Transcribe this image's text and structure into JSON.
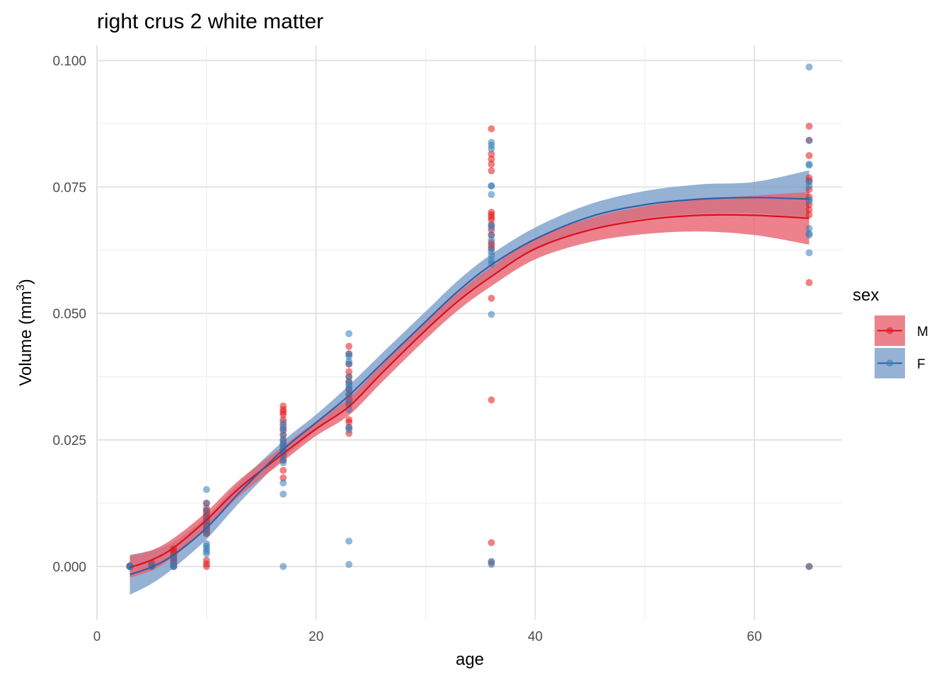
{
  "chart_data": {
    "type": "scatter",
    "title": "right crus 2 white matter",
    "xlabel": "age",
    "ylabel": "Volume (mm",
    "ylabel_sup": "3",
    "ylabel_close": ")",
    "xlim": [
      0,
      68
    ],
    "ylim": [
      -0.0105,
      0.103
    ],
    "x_ticks": [
      0,
      20,
      40,
      60
    ],
    "x_tick_labels": [
      "0",
      "20",
      "40",
      "60"
    ],
    "y_ticks": [
      0,
      0.025,
      0.05,
      0.075,
      0.1
    ],
    "y_tick_labels": [
      "0.000",
      "0.025",
      "0.050",
      "0.075",
      "0.100"
    ],
    "grid": true,
    "legend": {
      "title": "sex",
      "position": "right",
      "entries": [
        "M",
        "F"
      ]
    },
    "colors": {
      "M": "#e41a1c",
      "F": "#377eb8",
      "M_line": "#dc0f1e",
      "F_line": "#2f5fa8",
      "M_band": "#e8636f",
      "F_band": "#7a9fcb"
    },
    "series": [
      {
        "name": "M",
        "points": [
          [
            3,
            0
          ],
          [
            3,
            0
          ],
          [
            3,
            0
          ],
          [
            3,
            0
          ],
          [
            3,
            0.0001
          ],
          [
            5,
            0.0002
          ],
          [
            5,
            0.0007
          ],
          [
            5,
            0
          ],
          [
            7,
            0.0035
          ],
          [
            7,
            0.003
          ],
          [
            7,
            0.002
          ],
          [
            7,
            0.0025
          ],
          [
            7,
            0.001
          ],
          [
            7,
            0.0005
          ],
          [
            7,
            0.0015
          ],
          [
            7,
            0
          ],
          [
            10,
            0.0125
          ],
          [
            10,
            0.0115
          ],
          [
            10,
            0.011
          ],
          [
            10,
            0.0105
          ],
          [
            10,
            0.01
          ],
          [
            10,
            0.0095
          ],
          [
            10,
            0.009
          ],
          [
            10,
            0.0085
          ],
          [
            10,
            0.008
          ],
          [
            10,
            0.0075
          ],
          [
            10,
            0.007
          ],
          [
            10,
            0.0065
          ],
          [
            10,
            0.0012
          ],
          [
            10,
            0.0005
          ],
          [
            10,
            0
          ],
          [
            17,
            0.0317
          ],
          [
            17,
            0.031
          ],
          [
            17,
            0.0305
          ],
          [
            17,
            0.03
          ],
          [
            17,
            0.029
          ],
          [
            17,
            0.028
          ],
          [
            17,
            0.027
          ],
          [
            17,
            0.026
          ],
          [
            17,
            0.025
          ],
          [
            17,
            0.024
          ],
          [
            17,
            0.023
          ],
          [
            17,
            0.022
          ],
          [
            17,
            0.021
          ],
          [
            17,
            0.019
          ],
          [
            17,
            0.0175
          ],
          [
            23,
            0.0435
          ],
          [
            23,
            0.042
          ],
          [
            23,
            0.04
          ],
          [
            23,
            0.0385
          ],
          [
            23,
            0.0375
          ],
          [
            23,
            0.0365
          ],
          [
            23,
            0.035
          ],
          [
            23,
            0.034
          ],
          [
            23,
            0.033
          ],
          [
            23,
            0.032
          ],
          [
            23,
            0.029
          ],
          [
            23,
            0.0285
          ],
          [
            23,
            0.0275
          ],
          [
            23,
            0.0263
          ],
          [
            36,
            0.0865
          ],
          [
            36,
            0.0815
          ],
          [
            36,
            0.0805
          ],
          [
            36,
            0.0795
          ],
          [
            36,
            0.0782
          ],
          [
            36,
            0.07
          ],
          [
            36,
            0.0695
          ],
          [
            36,
            0.069
          ],
          [
            36,
            0.0685
          ],
          [
            36,
            0.0675
          ],
          [
            36,
            0.0665
          ],
          [
            36,
            0.0655
          ],
          [
            36,
            0.064
          ],
          [
            36,
            0.0635
          ],
          [
            36,
            0.0628
          ],
          [
            36,
            0.053
          ],
          [
            36,
            0.0329
          ],
          [
            36,
            0.0047
          ],
          [
            36,
            0.0008
          ],
          [
            65,
            0.087
          ],
          [
            65,
            0.0842
          ],
          [
            65,
            0.0812
          ],
          [
            65,
            0.0768
          ],
          [
            65,
            0.0762
          ],
          [
            65,
            0.0745
          ],
          [
            65,
            0.073
          ],
          [
            65,
            0.0715
          ],
          [
            65,
            0.0705
          ],
          [
            65,
            0.0695
          ],
          [
            65,
            0.0561
          ],
          [
            65,
            0
          ]
        ],
        "fit": [
          [
            3,
            -0.0002
          ],
          [
            5,
            0.0013
          ],
          [
            7,
            0.0037
          ],
          [
            10,
            0.0092
          ],
          [
            13,
            0.0155
          ],
          [
            17,
            0.0223
          ],
          [
            20,
            0.0272
          ],
          [
            23,
            0.0316
          ],
          [
            26,
            0.0382
          ],
          [
            30,
            0.0467
          ],
          [
            33,
            0.0525
          ],
          [
            36,
            0.0573
          ],
          [
            40,
            0.0628
          ],
          [
            45,
            0.0665
          ],
          [
            50,
            0.0685
          ],
          [
            55,
            0.0694
          ],
          [
            60,
            0.0694
          ],
          [
            65,
            0.0688
          ]
        ],
        "band": [
          [
            3,
            -0.0022,
            0.0021
          ],
          [
            5,
            -0.0008,
            0.0032
          ],
          [
            7,
            0.0019,
            0.0056
          ],
          [
            10,
            0.0075,
            0.0108
          ],
          [
            13,
            0.0139,
            0.0171
          ],
          [
            17,
            0.0208,
            0.0238
          ],
          [
            20,
            0.0258,
            0.0287
          ],
          [
            23,
            0.0299,
            0.0333
          ],
          [
            26,
            0.0364,
            0.0399
          ],
          [
            30,
            0.0449,
            0.0484
          ],
          [
            33,
            0.0507,
            0.0542
          ],
          [
            36,
            0.0554,
            0.0592
          ],
          [
            40,
            0.0607,
            0.0648
          ],
          [
            45,
            0.0641,
            0.0688
          ],
          [
            50,
            0.0657,
            0.0712
          ],
          [
            55,
            0.0662,
            0.0725
          ],
          [
            60,
            0.0655,
            0.0733
          ],
          [
            65,
            0.0636,
            0.074
          ]
        ]
      },
      {
        "name": "F",
        "points": [
          [
            3,
            0
          ],
          [
            3,
            0
          ],
          [
            3,
            0
          ],
          [
            3,
            0.0001
          ],
          [
            5,
            0
          ],
          [
            5,
            0.0003
          ],
          [
            7,
            0
          ],
          [
            7,
            0
          ],
          [
            7,
            0.0005
          ],
          [
            7,
            0.0012
          ],
          [
            7,
            0.002
          ],
          [
            10,
            0.0152
          ],
          [
            10,
            0.0125
          ],
          [
            10,
            0.011
          ],
          [
            10,
            0.0095
          ],
          [
            10,
            0.0085
          ],
          [
            10,
            0.0075
          ],
          [
            10,
            0.0065
          ],
          [
            10,
            0.0045
          ],
          [
            10,
            0.004
          ],
          [
            10,
            0.0035
          ],
          [
            10,
            0.003
          ],
          [
            10,
            0.0025
          ],
          [
            17,
            0.0285
          ],
          [
            17,
            0.0275
          ],
          [
            17,
            0.027
          ],
          [
            17,
            0.026
          ],
          [
            17,
            0.025
          ],
          [
            17,
            0.0245
          ],
          [
            17,
            0.024
          ],
          [
            17,
            0.0235
          ],
          [
            17,
            0.023
          ],
          [
            17,
            0.0225
          ],
          [
            17,
            0.022
          ],
          [
            17,
            0.021
          ],
          [
            17,
            0.0205
          ],
          [
            17,
            0.0165
          ],
          [
            17,
            0.0143
          ],
          [
            17,
            0
          ],
          [
            23,
            0.046
          ],
          [
            23,
            0.042
          ],
          [
            23,
            0.0415
          ],
          [
            23,
            0.0405
          ],
          [
            23,
            0.04
          ],
          [
            23,
            0.0375
          ],
          [
            23,
            0.0365
          ],
          [
            23,
            0.036
          ],
          [
            23,
            0.0355
          ],
          [
            23,
            0.035
          ],
          [
            23,
            0.034
          ],
          [
            23,
            0.0325
          ],
          [
            23,
            0.031
          ],
          [
            23,
            0.0275
          ],
          [
            23,
            0.027
          ],
          [
            23,
            0.005
          ],
          [
            23,
            0.0004
          ],
          [
            36,
            0.0838
          ],
          [
            36,
            0.0832
          ],
          [
            36,
            0.0825
          ],
          [
            36,
            0.0752
          ],
          [
            36,
            0.0752
          ],
          [
            36,
            0.0735
          ],
          [
            36,
            0.0675
          ],
          [
            36,
            0.067
          ],
          [
            36,
            0.0655
          ],
          [
            36,
            0.0645
          ],
          [
            36,
            0.063
          ],
          [
            36,
            0.0622
          ],
          [
            36,
            0.0615
          ],
          [
            36,
            0.0605
          ],
          [
            36,
            0.0598
          ],
          [
            36,
            0.0498
          ],
          [
            36,
            0.001
          ],
          [
            36,
            0.0004
          ],
          [
            65,
            0.0987
          ],
          [
            65,
            0.0842
          ],
          [
            65,
            0.0795
          ],
          [
            65,
            0.0793
          ],
          [
            65,
            0.076
          ],
          [
            65,
            0.0752
          ],
          [
            65,
            0.0725
          ],
          [
            65,
            0.0722
          ],
          [
            65,
            0.0668
          ],
          [
            65,
            0.0658
          ],
          [
            65,
            0.0655
          ],
          [
            65,
            0.062
          ],
          [
            65,
            0
          ]
        ],
        "fit": [
          [
            3,
            -0.0016
          ],
          [
            5,
            -0.0001
          ],
          [
            7,
            0.0023
          ],
          [
            10,
            0.0076
          ],
          [
            13,
            0.0146
          ],
          [
            17,
            0.0231
          ],
          [
            20,
            0.0284
          ],
          [
            23,
            0.0338
          ],
          [
            26,
            0.0401
          ],
          [
            30,
            0.0484
          ],
          [
            33,
            0.0545
          ],
          [
            36,
            0.0596
          ],
          [
            40,
            0.0647
          ],
          [
            45,
            0.0691
          ],
          [
            50,
            0.0715
          ],
          [
            55,
            0.0726
          ],
          [
            60,
            0.0729
          ],
          [
            65,
            0.0726
          ]
        ],
        "band": [
          [
            3,
            -0.0056,
            0.0023
          ],
          [
            5,
            -0.0034,
            0.0032
          ],
          [
            7,
            -0.0003,
            0.0049
          ],
          [
            10,
            0.0054,
            0.0099
          ],
          [
            13,
            0.0126,
            0.0166
          ],
          [
            17,
            0.0214,
            0.0248
          ],
          [
            20,
            0.0268,
            0.03
          ],
          [
            23,
            0.0318,
            0.0358
          ],
          [
            26,
            0.0381,
            0.0421
          ],
          [
            30,
            0.0464,
            0.0504
          ],
          [
            33,
            0.0524,
            0.0566
          ],
          [
            36,
            0.0575,
            0.0617
          ],
          [
            40,
            0.0625,
            0.067
          ],
          [
            45,
            0.0666,
            0.0716
          ],
          [
            50,
            0.0688,
            0.0742
          ],
          [
            55,
            0.0697,
            0.0755
          ],
          [
            60,
            0.0698,
            0.076
          ],
          [
            65,
            0.0689,
            0.0783
          ]
        ]
      }
    ]
  }
}
